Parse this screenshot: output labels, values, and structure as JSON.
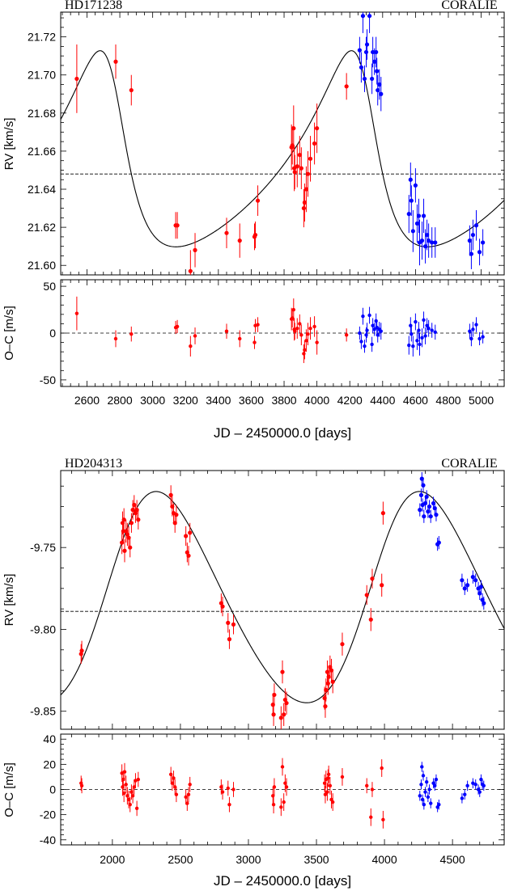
{
  "chart_data": [
    {
      "type": "scatter",
      "star": "HD171238",
      "instrument": "CORALIE",
      "xlabel": "JD – 2450000.0 [days]",
      "rv_ylabel": "RV [km/s]",
      "oc_ylabel": "O–C [m/s]",
      "xlim": [
        2440,
        5140
      ],
      "rv_ylim": [
        21.595,
        21.733
      ],
      "oc_ylim": [
        -57,
        57
      ],
      "x_ticks": [
        2600,
        2800,
        3000,
        3200,
        3400,
        3600,
        3800,
        4000,
        4200,
        4400,
        4600,
        4800,
        5000
      ],
      "rv_ticks": [
        21.6,
        21.62,
        21.64,
        21.66,
        21.68,
        21.7,
        21.72
      ],
      "oc_ticks": [
        -50,
        0,
        50
      ],
      "systemic_velocity": 21.648,
      "orbit_model": {
        "period": 1530,
        "K": 0.0515,
        "e": 0.4,
        "omega_deg": 50,
        "T_peri": 4300,
        "gamma": 21.648
      },
      "series": [
        {
          "color": "#ff0000",
          "x": [
            2538,
            2775,
            2870,
            3140,
            3150,
            3230,
            3258,
            3450,
            3530,
            3620,
            3625,
            3640,
            3845,
            3850,
            3858,
            3862,
            3865,
            3880,
            3895,
            3905,
            3920,
            3925,
            3935,
            3945,
            3960,
            3985,
            4000,
            4180
          ],
          "rv": [
            21.698,
            21.707,
            21.692,
            21.621,
            21.621,
            21.597,
            21.608,
            21.617,
            21.613,
            21.615,
            21.616,
            21.634,
            21.662,
            21.663,
            21.672,
            21.651,
            21.649,
            21.652,
            21.658,
            21.651,
            21.63,
            21.633,
            21.64,
            21.648,
            21.656,
            21.664,
            21.672,
            21.694
          ],
          "rv_err": [
            0.018,
            0.009,
            0.008,
            0.007,
            0.007,
            0.011,
            0.009,
            0.008,
            0.009,
            0.007,
            0.007,
            0.008,
            0.012,
            0.01,
            0.012,
            0.012,
            0.009,
            0.011,
            0.01,
            0.011,
            0.01,
            0.01,
            0.012,
            0.012,
            0.012,
            0.011,
            0.013,
            0.007
          ],
          "oc": [
            21,
            -6,
            -1,
            6,
            7,
            -14,
            -3,
            2,
            -6,
            -10,
            8,
            9,
            15,
            16,
            25,
            4,
            2,
            5,
            10,
            -2,
            -22,
            -18,
            -8,
            -1,
            5,
            7,
            -10,
            -2
          ],
          "oc_err": [
            18,
            9,
            8,
            7,
            7,
            11,
            9,
            8,
            9,
            7,
            7,
            8,
            12,
            10,
            12,
            12,
            9,
            11,
            10,
            11,
            10,
            10,
            12,
            12,
            12,
            11,
            13,
            7
          ]
        },
        {
          "color": "#0000ff",
          "x": [
            4260,
            4270,
            4280,
            4290,
            4300,
            4305,
            4320,
            4335,
            4340,
            4350,
            4360,
            4365,
            4370,
            4380,
            4390,
            4560,
            4570,
            4575,
            4585,
            4600,
            4610,
            4620,
            4625,
            4640,
            4650,
            4660,
            4670,
            4680,
            4700,
            4720,
            4930,
            4940,
            4950,
            4970,
            4990,
            5010
          ],
          "rv": [
            21.713,
            21.704,
            21.731,
            21.698,
            21.712,
            21.716,
            21.731,
            21.698,
            21.712,
            21.707,
            21.712,
            21.702,
            21.692,
            21.695,
            21.69,
            21.627,
            21.645,
            21.634,
            21.618,
            21.642,
            21.622,
            21.626,
            21.612,
            21.613,
            21.626,
            21.61,
            21.616,
            21.613,
            21.612,
            21.612,
            21.613,
            21.606,
            21.616,
            21.621,
            21.607,
            21.612
          ],
          "rv_err": [
            0.007,
            0.008,
            0.009,
            0.007,
            0.008,
            0.008,
            0.009,
            0.008,
            0.008,
            0.007,
            0.008,
            0.007,
            0.008,
            0.008,
            0.009,
            0.01,
            0.009,
            0.008,
            0.011,
            0.009,
            0.01,
            0.009,
            0.012,
            0.01,
            0.009,
            0.009,
            0.008,
            0.009,
            0.008,
            0.008,
            0.008,
            0.008,
            0.008,
            0.008,
            0.007,
            0.007
          ],
          "oc": [
            0,
            -9,
            18,
            -14,
            -2,
            3,
            19,
            -12,
            8,
            4,
            13,
            6,
            -2,
            4,
            2,
            -13,
            8,
            -1,
            -14,
            12,
            -8,
            3,
            -12,
            -5,
            14,
            -3,
            8,
            5,
            3,
            1,
            2,
            -6,
            4,
            9,
            -6,
            -4
          ],
          "oc_err": [
            7,
            8,
            9,
            7,
            8,
            8,
            9,
            8,
            8,
            7,
            8,
            7,
            8,
            8,
            9,
            10,
            9,
            8,
            11,
            9,
            10,
            9,
            12,
            10,
            9,
            9,
            8,
            9,
            8,
            8,
            8,
            8,
            8,
            8,
            7,
            7
          ]
        }
      ]
    },
    {
      "type": "scatter",
      "star": "HD204313",
      "instrument": "CORALIE",
      "xlabel": "JD – 2450000.0 [days]",
      "rv_ylabel": "RV [km/s]",
      "oc_ylabel": "O–C [m/s]",
      "xlim": [
        1620,
        4880
      ],
      "rv_ylim": [
        -9.861,
        -9.703
      ],
      "oc_ylim": [
        -44,
        44
      ],
      "x_ticks": [
        2000,
        2500,
        3000,
        3500,
        4000,
        4500
      ],
      "rv_ticks": [
        -9.85,
        -9.8,
        -9.75
      ],
      "oc_ticks": [
        -40,
        -20,
        0,
        20,
        40
      ],
      "systemic_velocity": -9.789,
      "orbit_model": {
        "period": 1935,
        "K": 0.0645,
        "e": 0.13,
        "omega_deg": 300,
        "T_peri": 4000,
        "gamma": -9.7845
      },
      "series": [
        {
          "color": "#ff0000",
          "x": [
            1770,
            1775,
            2070,
            2075,
            2080,
            2085,
            2090,
            2100,
            2110,
            2120,
            2130,
            2140,
            2150,
            2160,
            2170,
            2180,
            2190,
            2430,
            2440,
            2450,
            2460,
            2470,
            2540,
            2550,
            2560,
            2570,
            2800,
            2810,
            2850,
            2860,
            2890,
            3180,
            3185,
            3190,
            3240,
            3250,
            3260,
            3270,
            3280,
            3560,
            3565,
            3570,
            3580,
            3585,
            3590,
            3600,
            3610,
            3620,
            3690,
            3870,
            3900,
            3910,
            3980,
            3990
          ],
          "rv": [
            -9.815,
            -9.813,
            -9.747,
            -9.735,
            -9.74,
            -9.733,
            -9.752,
            -9.74,
            -9.742,
            -9.744,
            -9.75,
            -9.735,
            -9.727,
            -9.724,
            -9.729,
            -9.727,
            -9.733,
            -9.718,
            -9.725,
            -9.729,
            -9.735,
            -9.73,
            -9.743,
            -9.753,
            -9.755,
            -9.741,
            -9.784,
            -9.786,
            -9.796,
            -9.806,
            -9.797,
            -9.846,
            -9.852,
            -9.84,
            -9.854,
            -9.826,
            -9.852,
            -9.843,
            -9.845,
            -9.842,
            -9.847,
            -9.837,
            -9.826,
            -9.833,
            -9.829,
            -9.823,
            -9.825,
            -9.832,
            -9.809,
            -9.779,
            -9.794,
            -9.769,
            -9.773,
            -9.729
          ],
          "rv_err": [
            0.006,
            0.006,
            0.007,
            0.007,
            0.007,
            0.007,
            0.007,
            0.007,
            0.007,
            0.007,
            0.006,
            0.006,
            0.006,
            0.006,
            0.006,
            0.006,
            0.006,
            0.006,
            0.006,
            0.006,
            0.006,
            0.006,
            0.006,
            0.006,
            0.006,
            0.006,
            0.006,
            0.006,
            0.006,
            0.006,
            0.006,
            0.007,
            0.007,
            0.007,
            0.007,
            0.007,
            0.007,
            0.007,
            0.007,
            0.007,
            0.007,
            0.007,
            0.007,
            0.007,
            0.007,
            0.007,
            0.007,
            0.007,
            0.007,
            0.006,
            0.007,
            0.006,
            0.007,
            0.007
          ],
          "oc": [
            5,
            3,
            13,
            2,
            8,
            -3,
            14,
            4,
            -5,
            -8,
            -12,
            -2,
            -5,
            2,
            7,
            -15,
            8,
            12,
            5,
            9,
            2,
            -4,
            -6,
            -11,
            -4,
            4,
            2,
            -2,
            1,
            -12,
            0,
            -5,
            -12,
            2,
            -14,
            18,
            -10,
            5,
            2,
            5,
            -4,
            8,
            -2,
            9,
            12,
            3,
            -8,
            -10,
            10,
            3,
            -22,
            0,
            17,
            -24
          ],
          "oc_err": [
            6,
            6,
            7,
            7,
            7,
            7,
            7,
            7,
            7,
            7,
            6,
            6,
            6,
            6,
            6,
            6,
            6,
            6,
            6,
            6,
            6,
            6,
            6,
            6,
            6,
            6,
            6,
            6,
            6,
            6,
            6,
            7,
            7,
            7,
            7,
            7,
            7,
            7,
            7,
            7,
            7,
            7,
            7,
            7,
            7,
            7,
            7,
            7,
            7,
            6,
            7,
            6,
            7,
            7
          ]
        },
        {
          "color": "#0000ff",
          "x": [
            4260,
            4270,
            4275,
            4280,
            4285,
            4290,
            4300,
            4310,
            4320,
            4330,
            4340,
            4360,
            4370,
            4380,
            4390,
            4400,
            4570,
            4590,
            4610,
            4650,
            4670,
            4690,
            4700,
            4710,
            4720,
            4730
          ],
          "rv": [
            -9.727,
            -9.718,
            -9.708,
            -9.724,
            -9.712,
            -9.731,
            -9.723,
            -9.719,
            -9.728,
            -9.725,
            -9.731,
            -9.723,
            -9.726,
            -9.73,
            -9.748,
            -9.747,
            -9.77,
            -9.775,
            -9.773,
            -9.768,
            -9.77,
            -9.775,
            -9.778,
            -9.774,
            -9.782,
            -9.784
          ],
          "rv_err": [
            0.004,
            0.004,
            0.004,
            0.004,
            0.004,
            0.004,
            0.004,
            0.004,
            0.004,
            0.004,
            0.004,
            0.004,
            0.004,
            0.004,
            0.004,
            0.004,
            0.004,
            0.004,
            0.004,
            0.004,
            0.004,
            0.004,
            0.004,
            0.004,
            0.004,
            0.004
          ],
          "oc": [
            -5,
            4,
            18,
            -8,
            11,
            -12,
            -2,
            6,
            -6,
            0,
            -11,
            5,
            3,
            8,
            -14,
            -12,
            -7,
            -4,
            3,
            5,
            4,
            0,
            -2,
            8,
            4,
            3
          ],
          "oc_err": [
            4,
            4,
            4,
            4,
            4,
            4,
            4,
            4,
            4,
            4,
            4,
            4,
            4,
            4,
            4,
            4,
            4,
            4,
            4,
            4,
            4,
            4,
            4,
            4,
            4,
            4
          ]
        }
      ]
    }
  ]
}
